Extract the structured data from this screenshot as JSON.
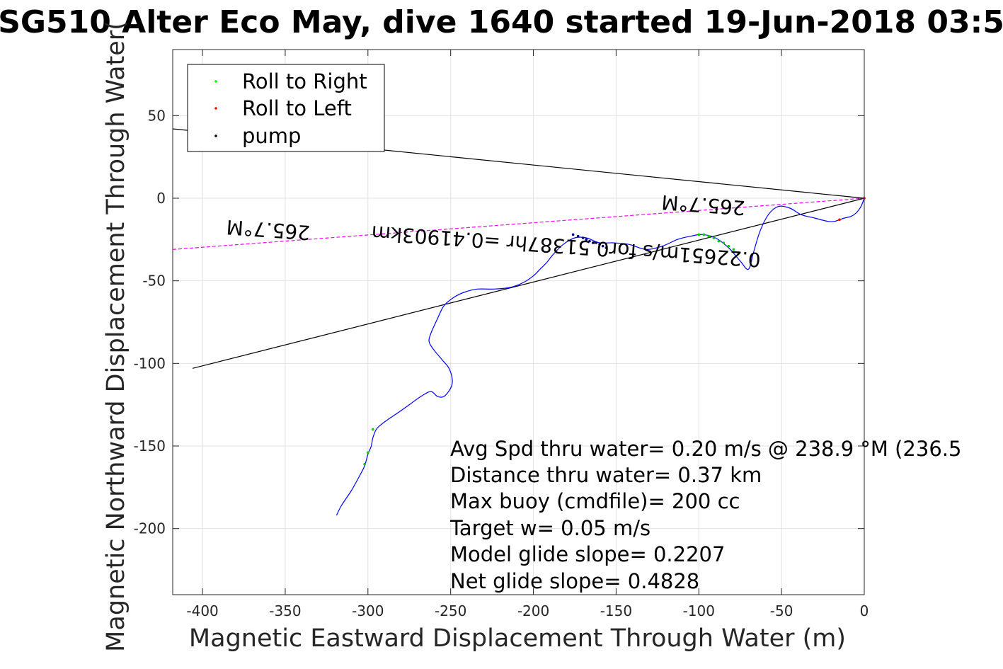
{
  "chart_data": {
    "type": "line",
    "title": "SG510 Alter Eco May, dive 1640 started 19-Jun-2018 03:5",
    "xlabel": "Magnetic Eastward Displacement Through Water (m)",
    "ylabel": "Magnetic Northward Displacement Through Water(",
    "xlim": [
      -418,
      0
    ],
    "ylim": [
      -240,
      90
    ],
    "xticks": [
      -400,
      -350,
      -300,
      -250,
      -200,
      -150,
      -100,
      -50,
      0
    ],
    "yticks": [
      50,
      0,
      -50,
      -100,
      -150,
      -200
    ],
    "grid": true,
    "legend": {
      "placement": "top-left",
      "entries": [
        {
          "label": "Roll to Right",
          "color": "#00ff00"
        },
        {
          "label": "Roll to Left",
          "color": "#ff0000"
        },
        {
          "label": "pump",
          "color": "#000000"
        }
      ]
    },
    "track": {
      "name": "",
      "color": "#0000ff",
      "x": [
        0,
        -2,
        -5,
        -8,
        -12,
        -15,
        -18,
        -22,
        -30,
        -38,
        -45,
        -52,
        -58,
        -63,
        -67,
        -70,
        -75,
        -82,
        -90,
        -98,
        -105,
        -113,
        -122,
        -132,
        -142,
        -152,
        -160,
        -168,
        -175,
        -182,
        -188,
        -192,
        -196,
        -200,
        -206,
        -214,
        -224,
        -234,
        -242,
        -248,
        -254,
        -258,
        -262,
        -263,
        -260,
        -255,
        -251,
        -249,
        -250,
        -254,
        -258,
        -262,
        -268,
        -275,
        -282,
        -288,
        -292,
        -295,
        -297,
        -298,
        -300,
        -302,
        -305,
        -310,
        -316,
        -319
      ],
      "y": [
        0,
        -5,
        -9,
        -11,
        -12,
        -13,
        -14,
        -14,
        -12,
        -10,
        -6,
        -5,
        -10,
        -20,
        -33,
        -43,
        -38,
        -30,
        -24,
        -22,
        -23,
        -25,
        -29,
        -31,
        -28,
        -27,
        -27,
        -24,
        -24,
        -28,
        -34,
        -39,
        -43,
        -47,
        -51,
        -54,
        -55,
        -55,
        -57,
        -60,
        -65,
        -73,
        -82,
        -87,
        -92,
        -98,
        -103,
        -110,
        -115,
        -120,
        -120,
        -117,
        -120,
        -125,
        -130,
        -134,
        -137,
        -140,
        -145,
        -150,
        -155,
        -162,
        -168,
        -177,
        -186,
        -192
      ]
    },
    "roll_right_points": {
      "x": [
        -100,
        -97,
        -94,
        -91,
        -88,
        -85,
        -82,
        -79,
        -76,
        -297,
        -300,
        -302
      ],
      "y": [
        -22,
        -22,
        -23,
        -24,
        -26,
        -27,
        -29,
        -31,
        -33,
        -140,
        -154,
        -161
      ]
    },
    "roll_left_points": {
      "x": [
        0,
        -15
      ],
      "y": [
        0,
        -13
      ]
    },
    "pump_points": {
      "x": [
        -176,
        -173,
        -170,
        -168,
        -166,
        -164,
        -162,
        -160,
        -158,
        -156
      ],
      "y": [
        -22,
        -23,
        -24,
        -25,
        -26,
        -27,
        -27,
        -28,
        -29,
        -30
      ]
    },
    "reference_lines": [
      {
        "name": "",
        "color": "#000000",
        "style": "solid",
        "x": [
          -418,
          0
        ],
        "y": [
          42,
          0
        ]
      },
      {
        "name": "",
        "color": "#000000",
        "style": "solid",
        "x": [
          -406,
          0
        ],
        "y": [
          -103,
          0
        ]
      },
      {
        "name": "",
        "color": "#ff00ff",
        "style": "dashed",
        "x": [
          -418,
          0
        ],
        "y": [
          -31,
          0
        ]
      }
    ],
    "annotations": [
      {
        "text": "265.7°M",
        "x": -360,
        "y": -15,
        "rotation_deg": 184
      },
      {
        "text": "0.22651m/s for0.51387hr =0.41903km",
        "x": -180,
        "y": -25,
        "rotation_deg": 184
      },
      {
        "text": "265.7°M",
        "x": -97,
        "y": 0,
        "rotation_deg": 184
      }
    ],
    "notes": [
      "Avg Spd thru water=  0.20 m/s @ 238.9 °M (236.5",
      "Distance thru water=  0.37 km",
      "Max buoy (cmdfile)= 200 cc",
      "Target w= 0.05 m/s",
      "Model glide slope= 0.2207",
      "Net glide slope= 0.4828"
    ]
  }
}
